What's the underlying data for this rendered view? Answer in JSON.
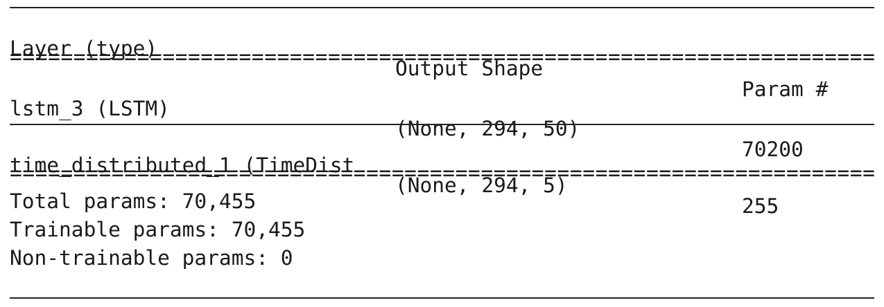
{
  "header": {
    "layer": "Layer (type)",
    "output_shape": "Output Shape",
    "param": "Param #"
  },
  "separator_equals": "====================================================================",
  "layers": [
    {
      "name": "lstm_3 (LSTM)",
      "output_shape": "(None, 294, 50)",
      "params": "70200"
    },
    {
      "name": "time_distributed_1 (TimeDist",
      "output_shape": "(None, 294, 5)",
      "params": "255"
    }
  ],
  "totals": {
    "total": "Total params: 70,455",
    "trainable": "Trainable params: 70,455",
    "non_trainable": "Non-trainable params: 0"
  }
}
